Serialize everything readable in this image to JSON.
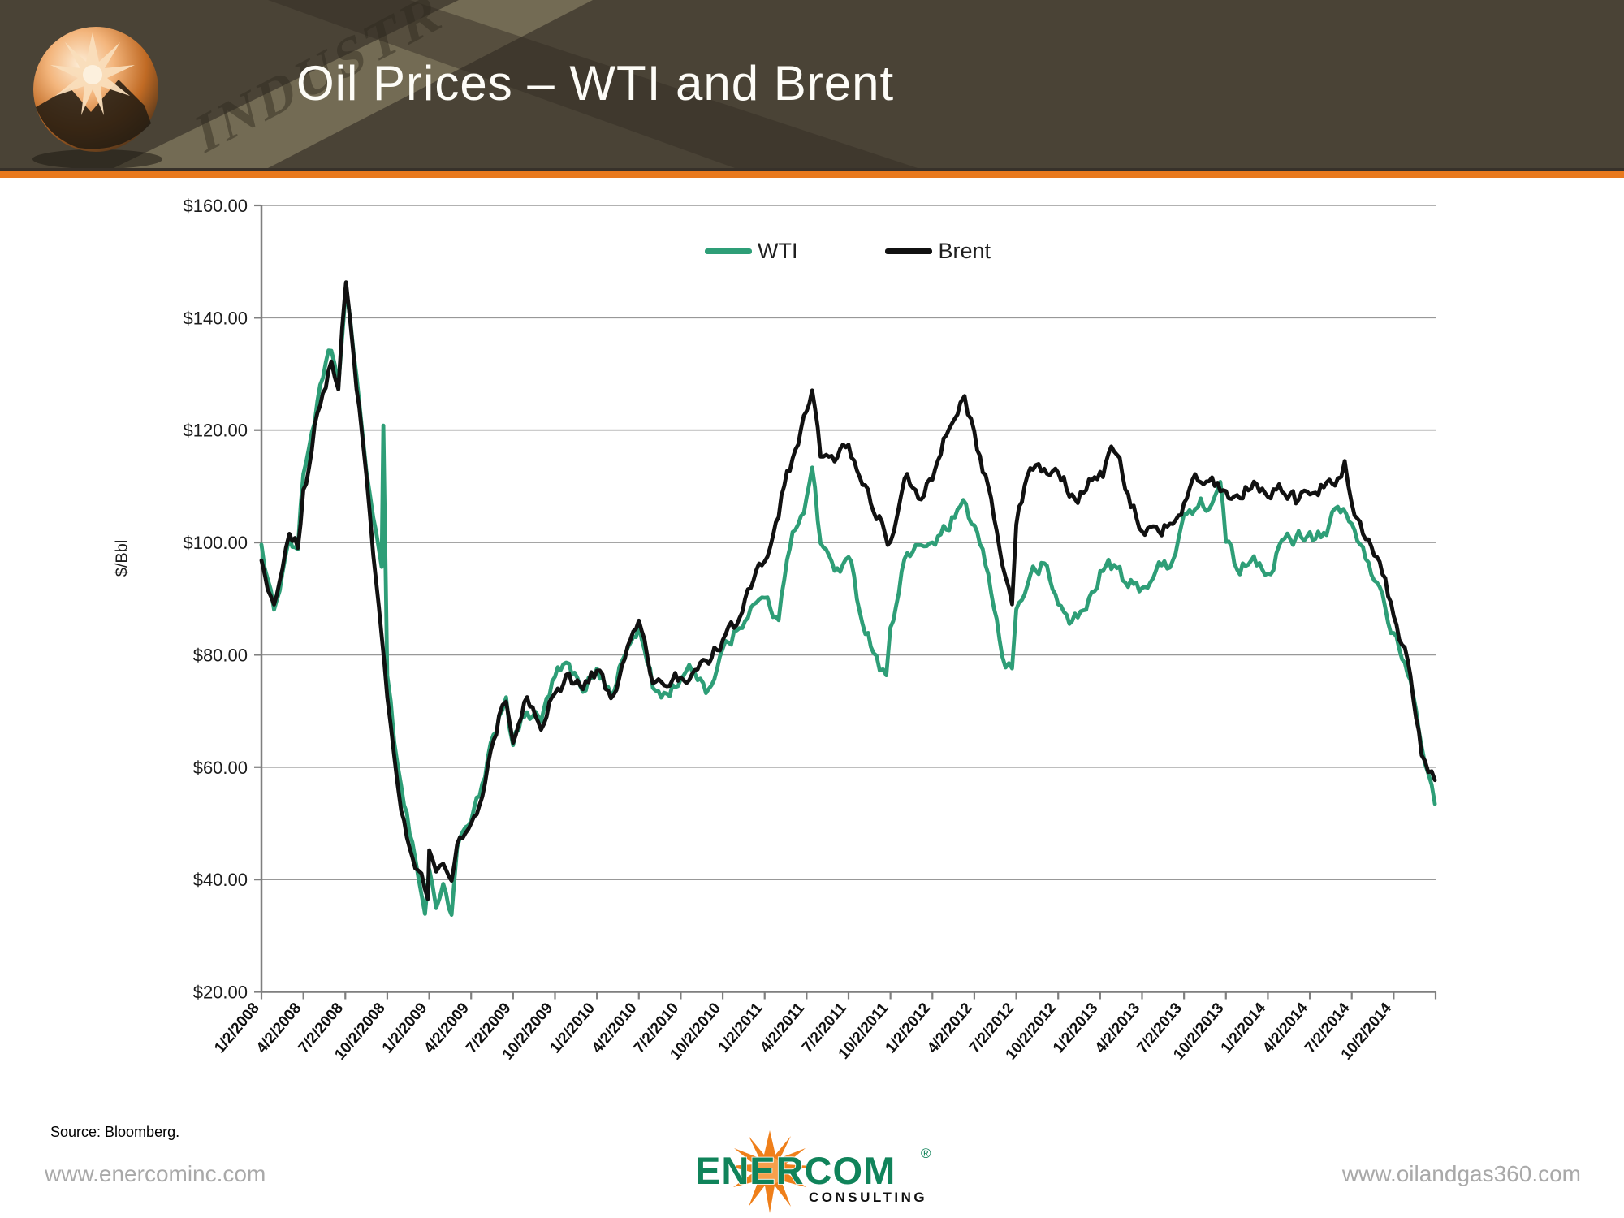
{
  "slide": {
    "title": "Oil Prices – WTI and Brent",
    "header_watermark": "INDUSTR",
    "colors": {
      "header_bg": "#4a4336",
      "accent_orange": "#e8791d",
      "wti_green": "#2e9e77",
      "brent_black": "#111111",
      "gridline": "#989898",
      "axis": "#7f7f7f"
    }
  },
  "chart_data": {
    "type": "line",
    "title": "Oil Prices – WTI and Brent",
    "xlabel": "",
    "ylabel": "$/Bbl",
    "ylim": [
      20,
      160
    ],
    "grid": true,
    "legend_position": "top-center",
    "y_tick_labels": [
      "$20.00",
      "$40.00",
      "$60.00",
      "$80.00",
      "$100.00",
      "$120.00",
      "$140.00",
      "$160.00"
    ],
    "y_tick_values": [
      20,
      40,
      60,
      80,
      100,
      120,
      140,
      160
    ],
    "x_tick_labels": [
      "1/2/2008",
      "4/2/2008",
      "7/2/2008",
      "10/2/2008",
      "1/2/2009",
      "4/2/2009",
      "7/2/2009",
      "10/2/2009",
      "1/2/2010",
      "4/2/2010",
      "7/2/2010",
      "10/2/2010",
      "1/2/2011",
      "4/2/2011",
      "7/2/2011",
      "10/2/2011",
      "1/2/2012",
      "4/2/2012",
      "7/2/2012",
      "10/2/2012",
      "1/2/2013",
      "4/2/2013",
      "7/2/2013",
      "10/2/2013",
      "1/2/2014",
      "4/2/2014",
      "7/2/2014",
      "10/2/2014"
    ],
    "x_tick_step_months": 3,
    "x_range_months": 84,
    "x_unit": "months since 1/2/2008",
    "series": [
      {
        "name": "WTI",
        "color": "#2e9e77",
        "points": [
          [
            0,
            99.6
          ],
          [
            0.9,
            87.5
          ],
          [
            1.5,
            95
          ],
          [
            2,
            101
          ],
          [
            2.6,
            99
          ],
          [
            3,
            112
          ],
          [
            4,
            125
          ],
          [
            5,
            134
          ],
          [
            5.5,
            128
          ],
          [
            6.05,
            145.3
          ],
          [
            6.6,
            133
          ],
          [
            7,
            125
          ],
          [
            7.5,
            113
          ],
          [
            8,
            104
          ],
          [
            8.6,
            96
          ],
          [
            8.72,
            120.9
          ],
          [
            9,
            76
          ],
          [
            9.5,
            64
          ],
          [
            10,
            57
          ],
          [
            11,
            44
          ],
          [
            11.7,
            33.9
          ],
          [
            12,
            42
          ],
          [
            12.5,
            35
          ],
          [
            13,
            39
          ],
          [
            13.6,
            34
          ],
          [
            14,
            46
          ],
          [
            15,
            50
          ],
          [
            16,
            58
          ],
          [
            17,
            69
          ],
          [
            17.5,
            72.7
          ],
          [
            18,
            64
          ],
          [
            19,
            70
          ],
          [
            20,
            68
          ],
          [
            21,
            76
          ],
          [
            22,
            78
          ],
          [
            23,
            73
          ],
          [
            24,
            78
          ],
          [
            25,
            73
          ],
          [
            26,
            80
          ],
          [
            27,
            85
          ],
          [
            28,
            74
          ],
          [
            29,
            73
          ],
          [
            30,
            76
          ],
          [
            31,
            77
          ],
          [
            32,
            74
          ],
          [
            33,
            81
          ],
          [
            34,
            84
          ],
          [
            35,
            89
          ],
          [
            36,
            90
          ],
          [
            37,
            86
          ],
          [
            38,
            102
          ],
          [
            39,
            108
          ],
          [
            39.4,
            113.5
          ],
          [
            40,
            100
          ],
          [
            41,
            95
          ],
          [
            42,
            97
          ],
          [
            43,
            86
          ],
          [
            44,
            80
          ],
          [
            44.7,
            76
          ],
          [
            45,
            85
          ],
          [
            46,
            97
          ],
          [
            47,
            99
          ],
          [
            48,
            100
          ],
          [
            49,
            102
          ],
          [
            50,
            106
          ],
          [
            51,
            103
          ],
          [
            52,
            94
          ],
          [
            53,
            80
          ],
          [
            53.7,
            77.7
          ],
          [
            54,
            88
          ],
          [
            55,
            94
          ],
          [
            56,
            96
          ],
          [
            57,
            89
          ],
          [
            58,
            86
          ],
          [
            59,
            88
          ],
          [
            60,
            95
          ],
          [
            61,
            96
          ],
          [
            62,
            92
          ],
          [
            63,
            92
          ],
          [
            64,
            95
          ],
          [
            65,
            96
          ],
          [
            66,
            105
          ],
          [
            67,
            106
          ],
          [
            68,
            107
          ],
          [
            68.6,
            110.5
          ],
          [
            69,
            100
          ],
          [
            70,
            94
          ],
          [
            71,
            98
          ],
          [
            72,
            95
          ],
          [
            73,
            100
          ],
          [
            74,
            101
          ],
          [
            75,
            102
          ],
          [
            76,
            102
          ],
          [
            77,
            106
          ],
          [
            78,
            103
          ],
          [
            79,
            97
          ],
          [
            80,
            92
          ],
          [
            81,
            84
          ],
          [
            82,
            76
          ],
          [
            83,
            64
          ],
          [
            83.95,
            53.3
          ]
        ]
      },
      {
        "name": "Brent",
        "color": "#111111",
        "points": [
          [
            0,
            96.8
          ],
          [
            0.9,
            89
          ],
          [
            1.5,
            95
          ],
          [
            2,
            101
          ],
          [
            2.6,
            99
          ],
          [
            3,
            110
          ],
          [
            4,
            123
          ],
          [
            5,
            132
          ],
          [
            5.5,
            127
          ],
          [
            6.05,
            146.1
          ],
          [
            6.6,
            133
          ],
          [
            7,
            124
          ],
          [
            7.5,
            112
          ],
          [
            8,
            98
          ],
          [
            9,
            72
          ],
          [
            9.5,
            62
          ],
          [
            10,
            52
          ],
          [
            11,
            42
          ],
          [
            11.9,
            36.6
          ],
          [
            12,
            45
          ],
          [
            12.5,
            41
          ],
          [
            13,
            43
          ],
          [
            13.6,
            39.5
          ],
          [
            14,
            46
          ],
          [
            15,
            50
          ],
          [
            16,
            57
          ],
          [
            17,
            69
          ],
          [
            17.5,
            71.5
          ],
          [
            18,
            64
          ],
          [
            19,
            72
          ],
          [
            20,
            67
          ],
          [
            21,
            73
          ],
          [
            22,
            77
          ],
          [
            23,
            74
          ],
          [
            24,
            77
          ],
          [
            25,
            72
          ],
          [
            26,
            79
          ],
          [
            27,
            86
          ],
          [
            28,
            75
          ],
          [
            29,
            74
          ],
          [
            30,
            76
          ],
          [
            31,
            77
          ],
          [
            32,
            78
          ],
          [
            33,
            83
          ],
          [
            34,
            85
          ],
          [
            35,
            92
          ],
          [
            36,
            97
          ],
          [
            37,
            104
          ],
          [
            38,
            115
          ],
          [
            39,
            123
          ],
          [
            39.4,
            126.7
          ],
          [
            40,
            115
          ],
          [
            41,
            114
          ],
          [
            42,
            117
          ],
          [
            43,
            110
          ],
          [
            44,
            104
          ],
          [
            45,
            100
          ],
          [
            45.5,
            105
          ],
          [
            46,
            111
          ],
          [
            47,
            108
          ],
          [
            48,
            111
          ],
          [
            49,
            119
          ],
          [
            50,
            125
          ],
          [
            50.3,
            126.2
          ],
          [
            51,
            120
          ],
          [
            52,
            110
          ],
          [
            53,
            96
          ],
          [
            53.7,
            89
          ],
          [
            54,
            103
          ],
          [
            55,
            113
          ],
          [
            56,
            113
          ],
          [
            57,
            112
          ],
          [
            58,
            109
          ],
          [
            59,
            109
          ],
          [
            60,
            113
          ],
          [
            61,
            116
          ],
          [
            62,
            109
          ],
          [
            63,
            102
          ],
          [
            64,
            103
          ],
          [
            65,
            103
          ],
          [
            66,
            107
          ],
          [
            67,
            111
          ],
          [
            68,
            112
          ],
          [
            69,
            109
          ],
          [
            70,
            108
          ],
          [
            71,
            111
          ],
          [
            72,
            108
          ],
          [
            73,
            109
          ],
          [
            74,
            107
          ],
          [
            75,
            108
          ],
          [
            76,
            110
          ],
          [
            77,
            112
          ],
          [
            77.5,
            115
          ],
          [
            78,
            107
          ],
          [
            79,
            101
          ],
          [
            80,
            97
          ],
          [
            81,
            87
          ],
          [
            82,
            79
          ],
          [
            83,
            62
          ],
          [
            83.95,
            57.3
          ]
        ]
      }
    ]
  },
  "footer": {
    "source": "Source: Bloomberg.",
    "left_url": "www.enercominc.com",
    "right_url": "www.oilandgas360.com",
    "logo": {
      "word": "ENERCOM",
      "subword": "CONSULTING",
      "registered": "®",
      "green": "#10835a",
      "orange": "#ef7f1a"
    }
  }
}
